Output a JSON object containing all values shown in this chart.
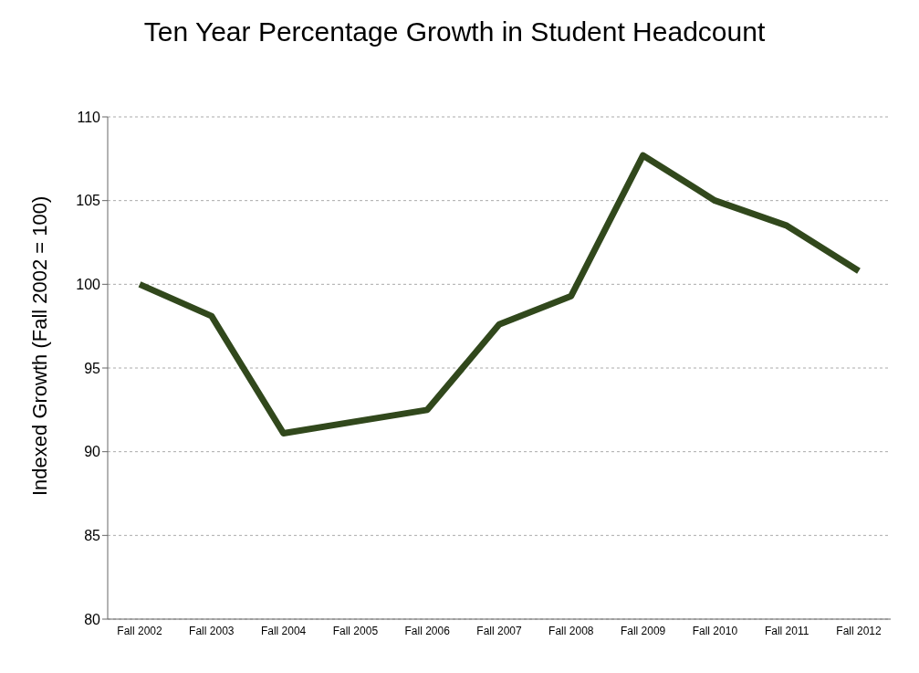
{
  "chart_data": {
    "type": "line",
    "title": "Ten Year Percentage Growth in Student Headcount",
    "ylabel": "Indexed Growth (Fall 2002 = 100)",
    "categories": [
      "Fall 2002",
      "Fall 2003",
      "Fall 2004",
      "Fall 2005",
      "Fall 2006",
      "Fall 2007",
      "Fall 2008",
      "Fall 2009",
      "Fall 2010",
      "Fall 2011",
      "Fall 2012"
    ],
    "series": [
      {
        "color": "#31481c",
        "values": [
          100,
          98.1,
          91.1,
          91.8,
          92.5,
          97.6,
          99.3,
          107.7,
          105,
          103.5,
          100.8
        ]
      }
    ],
    "ylim": [
      80,
      110
    ],
    "yticks": [
      80,
      85,
      90,
      95,
      100,
      105,
      110
    ],
    "grid": "y",
    "legend": false,
    "marker": "none",
    "line_style": "solid"
  }
}
